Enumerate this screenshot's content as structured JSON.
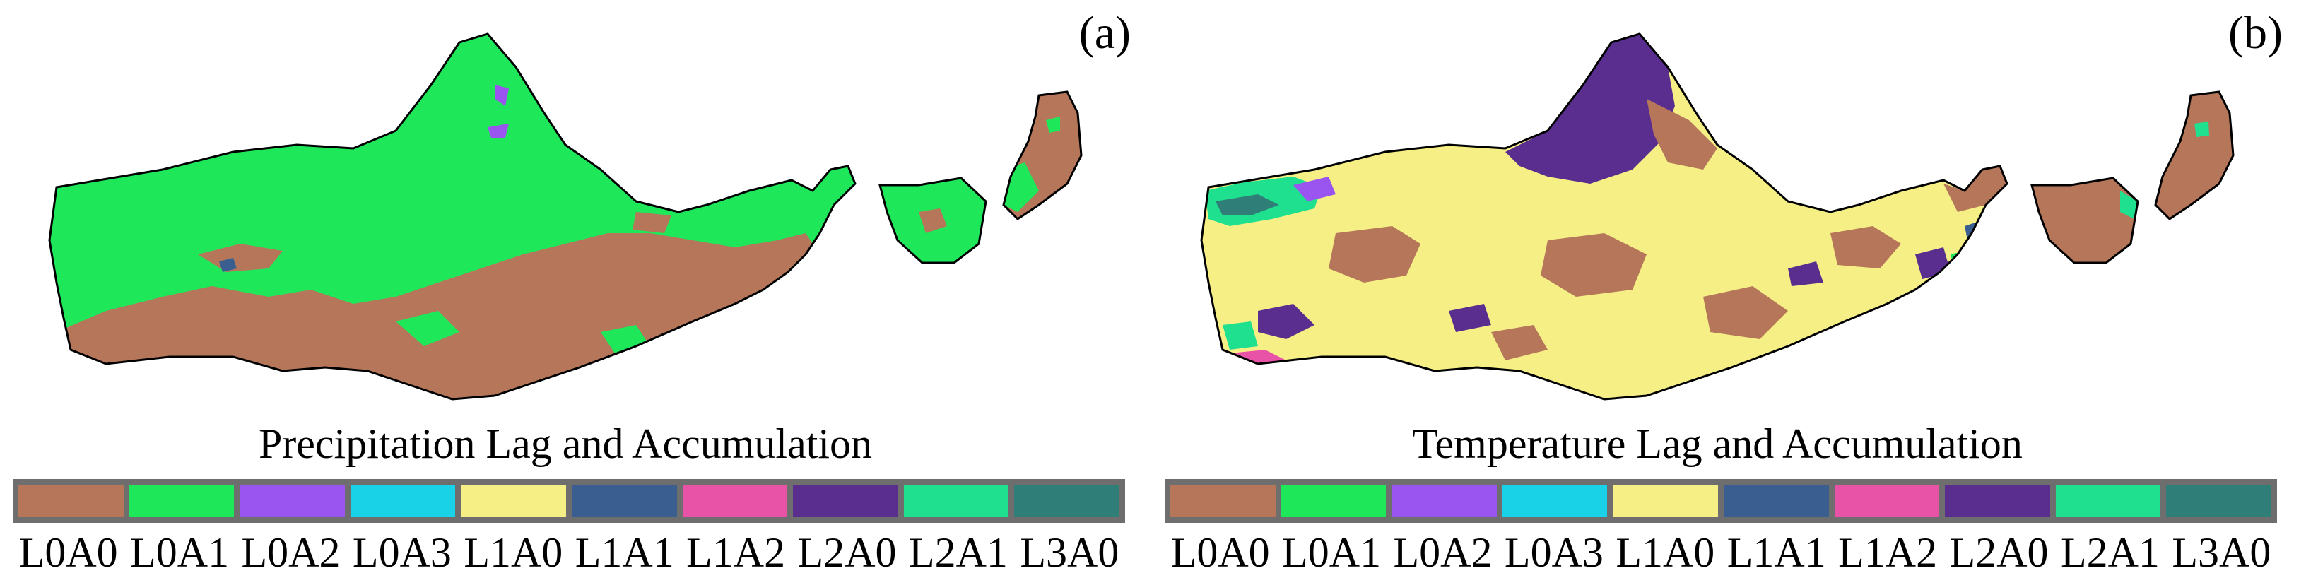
{
  "colors": {
    "L0A0": "#b5765a",
    "L0A1": "#1ee85a",
    "L0A2": "#9a55f0",
    "L0A3": "#1ad2e8",
    "L1A0": "#f5ef86",
    "L1A1": "#395e8f",
    "L1A2": "#e853a8",
    "L2A0": "#5a2e8f",
    "L2A1": "#1ee08f",
    "L3A0": "#2f7f78"
  },
  "legend_classes": [
    "L0A0",
    "L0A1",
    "L0A2",
    "L0A3",
    "L1A0",
    "L1A1",
    "L1A2",
    "L2A0",
    "L2A1",
    "L3A0"
  ],
  "panels": [
    {
      "label": "(a)",
      "title": "Precipitation Lag and Accumulation"
    },
    {
      "label": "(b)",
      "title": "Temperature Lag and Accumulation"
    }
  ]
}
